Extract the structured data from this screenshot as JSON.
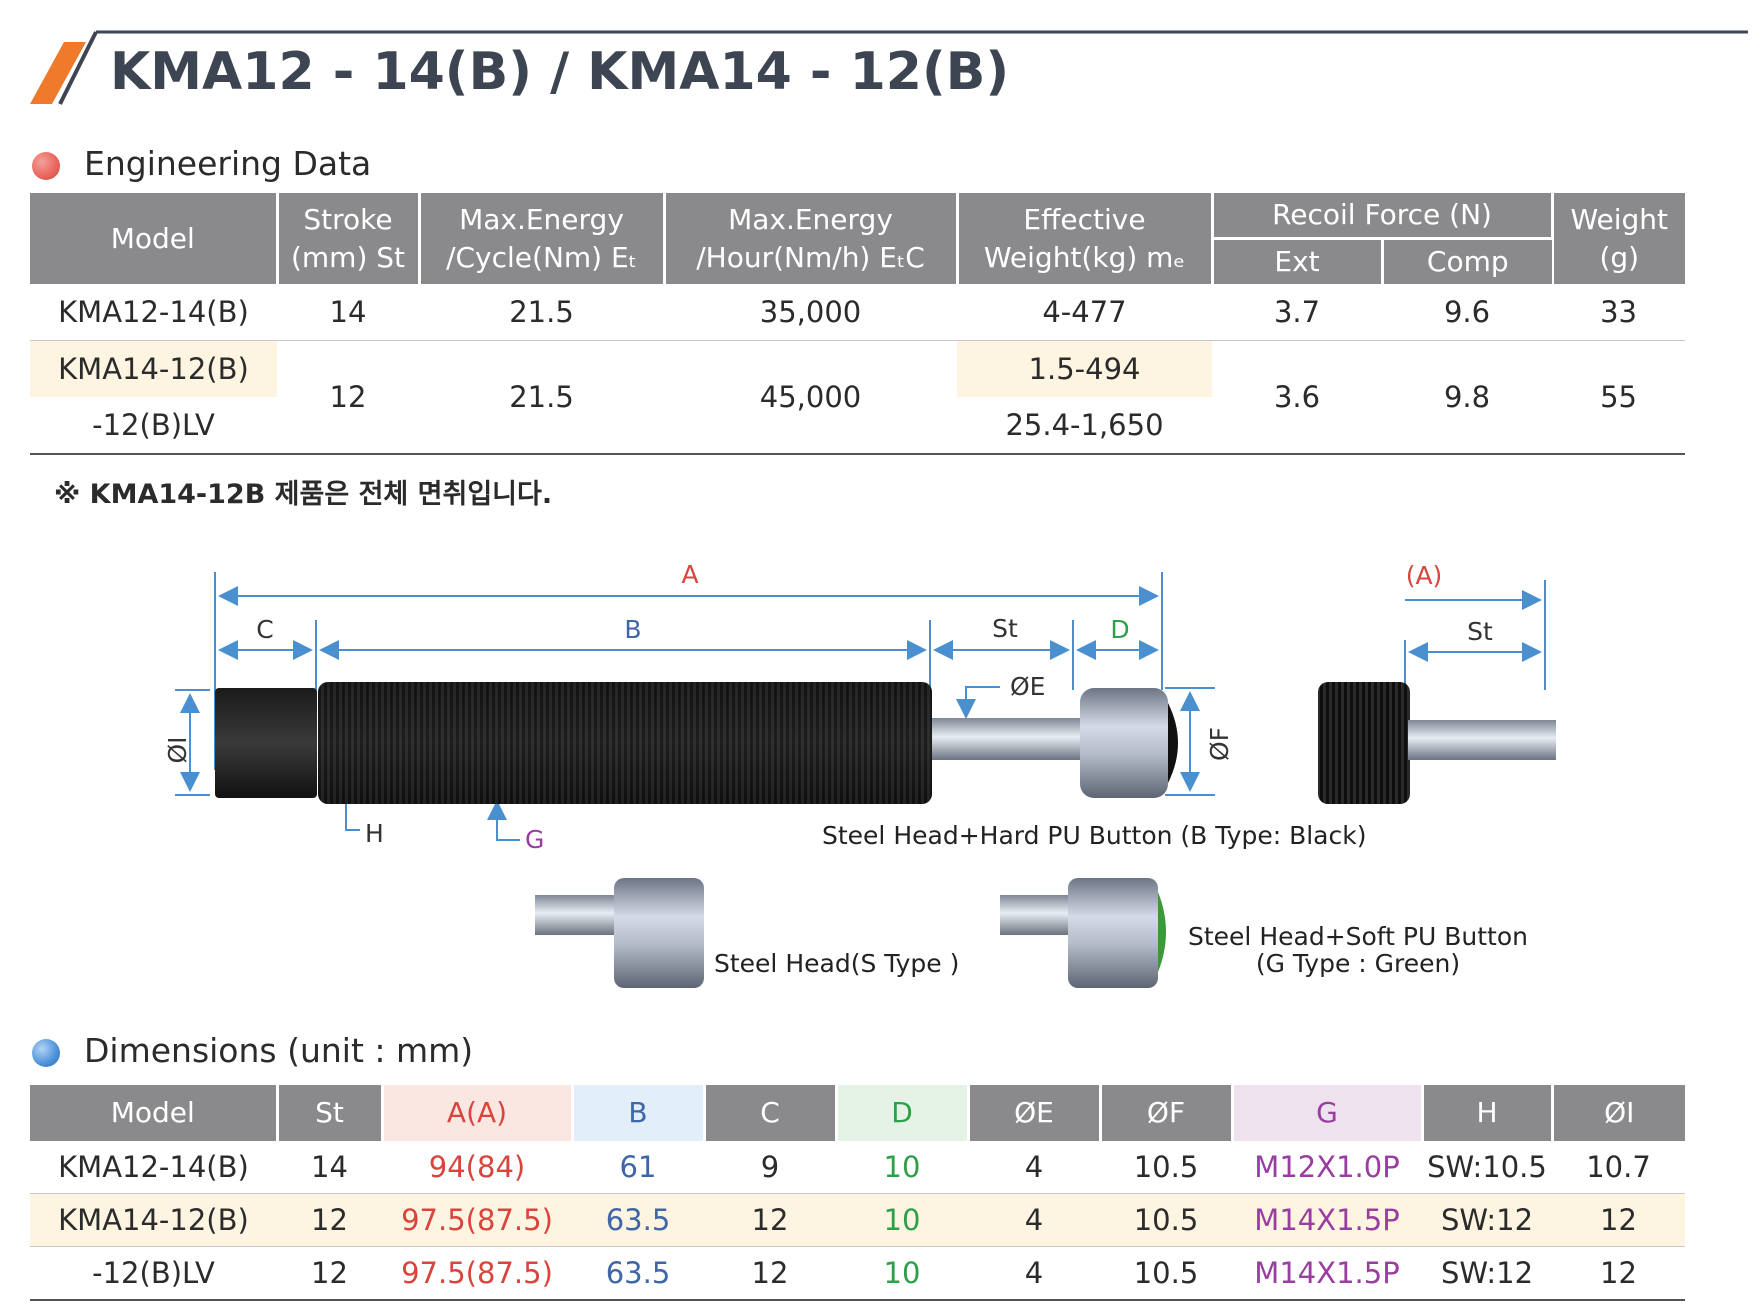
{
  "title": "KMA12 - 14(B) / KMA14 - 12(B)",
  "engineering": {
    "heading": "Engineering Data",
    "headers": {
      "model": "Model",
      "stroke": [
        "Stroke",
        "(mm) St"
      ],
      "energy_cycle": [
        "Max.Energy",
        "/Cycle(Nm) Eₜ"
      ],
      "energy_hour": [
        "Max.Energy",
        "/Hour(Nm/h) EₜC"
      ],
      "eff_weight": [
        "Effective",
        "Weight(kg) mₑ"
      ],
      "recoil": "Recoil Force (N)",
      "ext": "Ext",
      "comp": "Comp",
      "weight": [
        "Weight",
        "(g)"
      ]
    },
    "rows": [
      {
        "model": "KMA12-14(B)",
        "stroke": "14",
        "energy_cycle": "21.5",
        "energy_hour": "35,000",
        "eff_weight": "4-477",
        "ext": "3.7",
        "comp": "9.6",
        "weight": "33"
      },
      {
        "model": "KMA14-12(B)",
        "model_lv": "-12(B)LV",
        "stroke": "12",
        "energy_cycle": "21.5",
        "energy_hour": "45,000",
        "eff_weight": "1.5-494",
        "eff_weight_lv": "25.4-1,650",
        "ext": "3.6",
        "comp": "9.8",
        "weight": "55"
      }
    ],
    "note": "※ KMA14-12B 제품은 전체 면취입니다."
  },
  "diagram": {
    "labels": {
      "A": "A",
      "A_paren": "(A)",
      "B": "B",
      "C": "C",
      "D": "D",
      "St": "St",
      "St2": "St",
      "E": "ØE",
      "F": "ØF",
      "I": "ØI",
      "G": "G",
      "H": "H"
    },
    "captions": {
      "b_type": "Steel Head+Hard PU Button  (B Type: Black)",
      "s_type": "Steel Head(S Type )",
      "g_type_1": "Steel Head+Soft PU Button",
      "g_type_2": "(G Type : Green)"
    }
  },
  "dimensions": {
    "heading": "Dimensions (unit : mm)",
    "headers": [
      "Model",
      "St",
      "A(A)",
      "B",
      "C",
      "D",
      "ØE",
      "ØF",
      "G",
      "H",
      "ØI"
    ],
    "rows": [
      [
        "KMA12-14(B)",
        "14",
        "94(84)",
        "61",
        "9",
        "10",
        "4",
        "10.5",
        "M12X1.0P",
        "SW:10.5",
        "10.7"
      ],
      [
        "KMA14-12(B)",
        "12",
        "97.5(87.5)",
        "63.5",
        "12",
        "10",
        "4",
        "10.5",
        "M14X1.5P",
        "SW:12",
        "12"
      ],
      [
        "-12(B)LV",
        "12",
        "97.5(87.5)",
        "63.5",
        "12",
        "10",
        "4",
        "10.5",
        "M14X1.5P",
        "SW:12",
        "12"
      ]
    ]
  },
  "colors": {
    "header_gray": "#8a8a8c",
    "highlight_cream": "#fdf5e2",
    "red_text": "#d9443c",
    "blue_text": "#3f67a8",
    "green_text": "#2ea04a",
    "purple_text": "#9a3da0",
    "accent_orange": "#f07a2c",
    "dot_red": "#e8645c",
    "dot_blue": "#4a90d9"
  }
}
